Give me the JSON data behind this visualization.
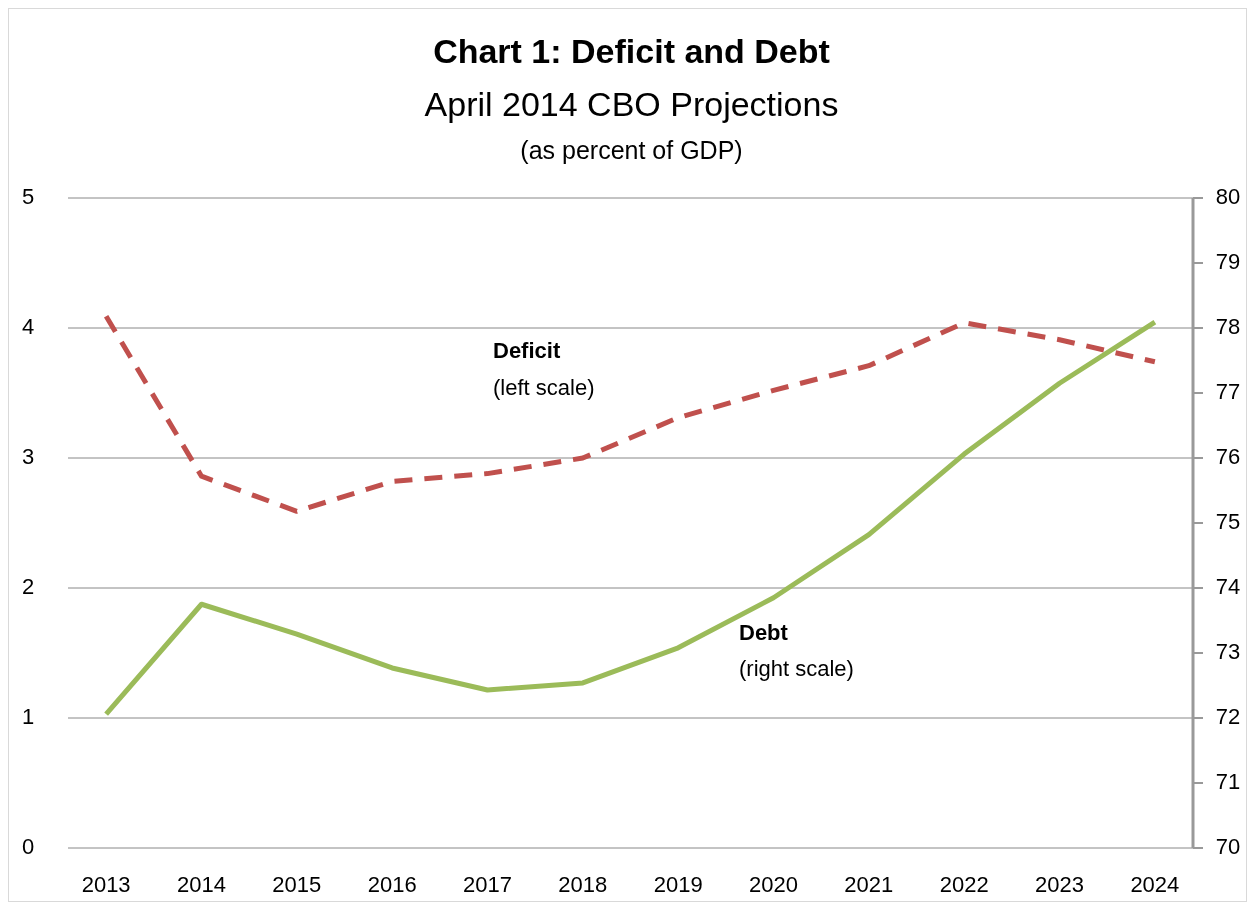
{
  "chart_data": {
    "type": "line",
    "title": "Chart 1: Deficit and Debt",
    "subtitle": "April 2014 CBO Projections",
    "annotations": [
      "(as percent of GDP)",
      "Deficit",
      "(left scale)",
      "Debt",
      "(right scale)"
    ],
    "categories": [
      "2013",
      "2014",
      "2015",
      "2016",
      "2017",
      "2018",
      "2019",
      "2020",
      "2021",
      "2022",
      "2023",
      "2024"
    ],
    "series": [
      {
        "color": "#c0504d",
        "line_style": "dashed",
        "values": [
          4.09,
          2.86,
          2.59,
          2.82,
          2.88,
          3.0,
          3.31,
          3.52,
          3.71,
          4.04,
          3.91,
          3.74
        ]
      },
      {
        "color": "#9bbb59",
        "axis": "y2",
        "line_style": "solid",
        "values": [
          72.06,
          73.75,
          73.29,
          72.77,
          72.43,
          72.54,
          73.08,
          73.85,
          74.82,
          76.06,
          77.15,
          78.09
        ]
      }
    ],
    "ylim": [
      0,
      5
    ],
    "yticks": [
      0,
      1,
      2,
      3,
      4,
      5
    ],
    "y2lim": [
      70,
      80
    ],
    "y2ticks": [
      70,
      71,
      72,
      73,
      74,
      75,
      76,
      77,
      78,
      79,
      80
    ],
    "grid": "y"
  }
}
